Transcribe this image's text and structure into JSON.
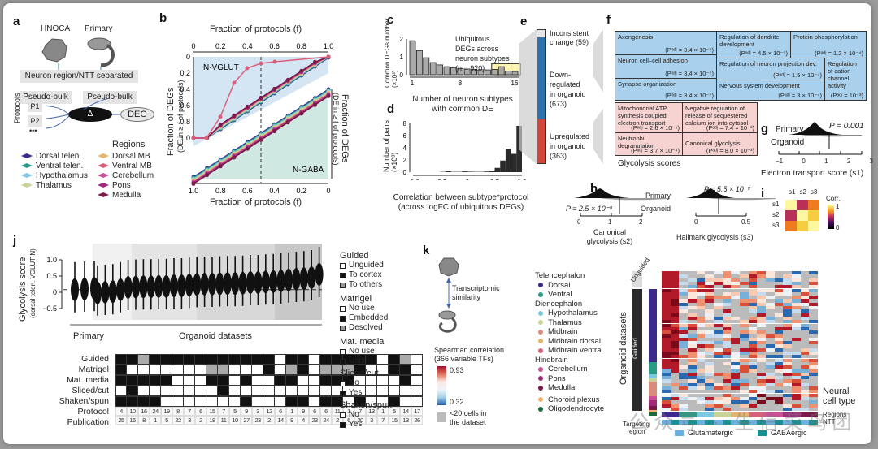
{
  "panels": {
    "a": {
      "label": "a",
      "hnoca": "HNOCA",
      "primary": "Primary",
      "separated": "Neuron region/NTT separated",
      "pseudobulk_left": "Pseudo-bulk",
      "pseudobulk_right": "Pseudo-bulk",
      "protocols_axis": "Protocols",
      "p1": "P1",
      "p2": "P2",
      "ellipsis": "•••",
      "delta": "Δ",
      "deg": "DEG",
      "regions_title": "Regions",
      "regions_left": [
        {
          "label": "Dorsal telen.",
          "color": "#3a2a8c"
        },
        {
          "label": "Ventral telen.",
          "color": "#2a9c86"
        },
        {
          "label": "Hypothalamus",
          "color": "#7cc8e0"
        },
        {
          "label": "Thalamus",
          "color": "#c6d49a"
        }
      ],
      "regions_right": [
        {
          "label": "Dorsal MB",
          "color": "#e3b470"
        },
        {
          "label": "Ventral MB",
          "color": "#d9607a"
        },
        {
          "label": "Cerebellum",
          "color": "#c95095"
        },
        {
          "label": "Pons",
          "color": "#a02a7a"
        },
        {
          "label": "Medulla",
          "color": "#7a1a4a"
        }
      ]
    },
    "b": {
      "label": "b",
      "top_xlabel": "Fraction of protocols (f)",
      "bottom_xlabel": "Fraction of protocols (f)",
      "left_ylabel": "Fraction of DEGs",
      "left_ylabel_sub": "(DE in ≥ f of protocols)",
      "right_ylabel": "Fraction of DEGs",
      "right_ylabel_sub": "(DE in ≥ f of protocols)",
      "top_ticks": [
        "0",
        "0.2",
        "0.4",
        "0.6",
        "0.8",
        "1.0"
      ],
      "bottom_ticks": [
        "1.0",
        "0.8",
        "0.6",
        "0.4",
        "0.2",
        "0"
      ],
      "left_ticks": [
        "0",
        "0.2",
        "0.4",
        "0.6",
        "0.8",
        "1.0"
      ],
      "right_ticks": [
        "1.0",
        "0.8",
        "0.6",
        "0.4",
        "0.2",
        "0"
      ],
      "vglut_label": "N-VGLUT",
      "gaba_label": "N-GABA"
    },
    "c": {
      "label": "c",
      "ylabel": "Common DEGs number (×10³)",
      "xlabel_1": "Number of neuron subtypes",
      "xlabel_2": "with common DE",
      "annotation_1": "Ubiquitous",
      "annotation_2": "DEGs across",
      "annotation_3": "neuron subtypes",
      "annotation_4": "(n = 920)",
      "yticks": [
        "0",
        "1",
        "2"
      ],
      "xticks": [
        "1",
        "8",
        "16"
      ]
    },
    "d": {
      "label": "d",
      "ylabel": "Number of pairs (×10³)",
      "xlabel_1": "Correlation between subtype*protocol",
      "xlabel_2": "(across logFC of ubiquitous  DEGs)",
      "yticks": [
        "0",
        "2",
        "4",
        "6",
        "8"
      ],
      "xticks": [
        "−1.0",
        "−0.5",
        "0",
        "0.5",
        "1.0"
      ]
    },
    "e": {
      "label": "e",
      "segments": [
        {
          "label": "Inconsistent change (59)",
          "count": 59,
          "color": "#e6e6e6"
        },
        {
          "label": "Down-regulated in organoid (673)",
          "count": 673,
          "color": "#2f73ad"
        },
        {
          "label": "Upregulated in organoid (363)",
          "count": 363,
          "color": "#d2473a"
        }
      ],
      "text_incons_1": "Inconsistent",
      "text_incons_2": "change (59)",
      "text_down_1": "Down-",
      "text_down_2": "regulated",
      "text_down_3": "in organoid",
      "text_down_4": "(673)",
      "text_up_1": "Upregulated",
      "text_up_2": "in organoid",
      "text_up_3": "(363)"
    },
    "f": {
      "label": "f",
      "down_terms": [
        {
          "name": "Axongenesis",
          "p": "(Pᵃᵈʲ = 3.4 × 10⁻⁵)"
        },
        {
          "name": "Regulation of dendrite development",
          "p": "(Pᵃᵈʲ = 4.5 × 10⁻⁵)"
        },
        {
          "name": "Protein phosphorylation",
          "p": "(Pᵃᵈʲ = 1.2 × 10⁻⁴)"
        },
        {
          "name": "Neuron cell–cell adhesion",
          "p": "(Pᵃᵈʲ = 3.4 × 10⁻⁵)"
        },
        {
          "name": "Regulation of neuron projection dev.",
          "p": "(Pᵃᵈʲ = 1.5 × 10⁻⁴)"
        },
        {
          "name": "Regulation of cation channel activity",
          "p": "(Pᵃᵈʲ = 10⁻³)"
        },
        {
          "name": "Synapse organization",
          "p": "(Pᵃᵈʲ = 3.4 × 10⁻⁵)"
        },
        {
          "name": "Nervous system development",
          "p": "(Pᵃᵈʲ = 3 × 10⁻⁴)"
        }
      ],
      "up_terms": [
        {
          "name": "Mitochondrial ATP synthesis coupled electron transport",
          "p": "(Pᵃᵈʲ = 2.6 × 10⁻⁵)"
        },
        {
          "name": "Negative regulation of release of sequestered calcium ion into cytosol",
          "p": "(Pᵃᵈʲ = 7.4 × 10⁻³)"
        },
        {
          "name": "Neutrophil degranulation",
          "p": "(Pᵃᵈʲ = 3.7 × 10⁻⁴)"
        },
        {
          "name": "Canonical glycolysis",
          "p": "(Pᵃᵈʲ = 8.0 × 10⁻³)"
        }
      ],
      "glycolysis_scores": "Glycolysis scores"
    },
    "g": {
      "label": "g",
      "primary": "Primary",
      "organoid": "Organoid",
      "p_value": "P = 0.001",
      "xlabel": "Electron transport score (s1)",
      "xticks": [
        "−1",
        "0",
        "1",
        "2",
        "3"
      ]
    },
    "h": {
      "label": "h",
      "primary": "Primary",
      "organoid": "Organoid",
      "p_left": "P = 2.5 × 10⁻⁸",
      "p_right": "P = 5.5 × 10⁻⁷",
      "xlabel_left_1": "Canonical",
      "xlabel_left_2": "glycolysis (s2)",
      "xlabel_right": "Hallmark glycolysis (s3)",
      "xticks_left": [
        "0",
        "1",
        "2"
      ],
      "xticks_right": [
        "0",
        "0.5"
      ]
    },
    "i": {
      "label": "i",
      "cols": [
        "s1",
        "s2",
        "s3"
      ],
      "rows": [
        "s1",
        "s2",
        "s3"
      ],
      "matrix": [
        [
          1.0,
          0.35,
          0.7
        ],
        [
          0.35,
          1.0,
          0.9
        ],
        [
          0.7,
          0.9,
          1.0
        ]
      ],
      "legend_title": "Corr.",
      "legend_max": "1",
      "legend_min": "0"
    },
    "j": {
      "label": "j",
      "ylabel": "Glycolysis score",
      "ylabel_sub": "(dorsal telen. VGLUT-N)",
      "yticks": [
        "1.0",
        "0.5",
        "0",
        "−0.5"
      ],
      "primary_label": "Primary",
      "organoid_label": "Organoid datasets",
      "row_labels": [
        "Guided",
        "Matrigel",
        "Mat. media",
        "Sliced/cut",
        "Shaken/spun",
        "Protocol",
        "Publication"
      ],
      "guided": [
        1,
        1,
        2,
        1,
        1,
        1,
        1,
        1,
        1,
        1,
        1,
        1,
        1,
        1,
        0,
        1,
        1,
        0,
        1,
        1,
        1,
        1,
        1,
        0,
        1,
        2,
        0,
        1,
        2,
        2
      ],
      "matrigel": [
        1,
        0,
        0,
        0,
        0,
        0,
        0,
        0,
        2,
        2,
        0,
        0,
        0,
        1,
        0,
        2,
        1,
        0,
        2,
        2,
        2,
        1,
        0,
        0,
        1,
        1,
        0,
        0,
        0,
        0
      ],
      "mat_media": [
        1,
        1,
        1,
        1,
        1,
        0,
        0,
        0,
        1,
        1,
        0,
        1,
        0,
        0,
        1,
        1,
        0,
        0,
        1,
        1,
        1,
        0,
        0,
        0,
        0,
        1,
        0,
        0,
        0,
        0
      ],
      "sliced": [
        0,
        1,
        0,
        0,
        0,
        0,
        0,
        0,
        0,
        1,
        0,
        0,
        0,
        0,
        0,
        0,
        0,
        0,
        0,
        0,
        0,
        0,
        0,
        0,
        0,
        0,
        0,
        0,
        0,
        0
      ],
      "shaken": [
        1,
        1,
        1,
        1,
        0,
        0,
        0,
        0,
        0,
        0,
        0,
        1,
        0,
        0,
        0,
        1,
        1,
        0,
        1,
        1,
        0,
        1,
        0,
        0,
        1,
        0,
        0,
        1,
        1,
        1
      ],
      "protocol": [
        "4",
        "10",
        "16",
        "24",
        "19",
        "8",
        "7",
        "6",
        "15",
        "7",
        "5",
        "9",
        "3",
        "12",
        "6",
        "1",
        "9",
        "6",
        "6",
        "11",
        "1",
        "7",
        "13",
        "1",
        "5",
        "14",
        "17",
        "",
        "",
        ""
      ],
      "publication": [
        "25",
        "16",
        "8",
        "1",
        "5",
        "22",
        "3",
        "2",
        "18",
        "11",
        "10",
        "27",
        "23",
        "2",
        "14",
        "9",
        "4",
        "23",
        "24",
        "2",
        "6",
        "20",
        "3",
        "7",
        "15",
        "13",
        "26",
        "",
        "",
        ""
      ],
      "primary_medians": [
        0.08,
        0.1,
        0.12
      ],
      "organoid_medians": [
        -0.02,
        0.0,
        0.02,
        0.08,
        0.15,
        0.16,
        0.17,
        0.17,
        0.18,
        0.18,
        0.2,
        0.2,
        0.22,
        0.24,
        0.25,
        0.25,
        0.26,
        0.27,
        0.27,
        0.28,
        0.3,
        0.3,
        0.32,
        0.33,
        0.35,
        0.38,
        0.4,
        0.42,
        0.45,
        0.55
      ],
      "legend": {
        "guided_title": "Guided",
        "guided_items": [
          "Unguided",
          "To cortex",
          "To others"
        ],
        "matrigel_title": "Matrigel",
        "matrigel_items": [
          "No use",
          "Embedded",
          "Desolved"
        ],
        "matmedia_title": "Mat. media",
        "matmedia_items": [
          "No use",
          "Used"
        ],
        "sliced_title": "Sliced/cut",
        "sliced_items": [
          "No",
          "Yes"
        ],
        "shaken_title": "Shaken/spun",
        "shaken_items": [
          "No",
          "Yes"
        ]
      }
    },
    "k": {
      "label": "k",
      "similarity": "Transcriptomic similarity",
      "similarity_1": "Transcriptomic",
      "similarity_2": "similarity",
      "scale_title_1": "Spearman correlation",
      "scale_title_2": "(366 variable TFs)",
      "scale_max": "0.93",
      "scale_min": "0.32",
      "na_1": "<20 cells in",
      "na_2": "the dataset",
      "groups": [
        {
          "title": "Telencephalon",
          "items": [
            {
              "label": "Dorsal",
              "color": "#3a2a8c"
            },
            {
              "label": "Ventral",
              "color": "#2a9c86"
            }
          ]
        },
        {
          "title": "Diencephalon",
          "items": [
            {
              "label": "Hypothalamus",
              "color": "#7cc8e0"
            },
            {
              "label": "Thalamus",
              "color": "#c6d49a"
            },
            {
              "label": "Midbrain",
              "color": "#d98c7a"
            },
            {
              "label": "Midbrain dorsal",
              "color": "#e3b470"
            },
            {
              "label": "Midbrain ventral",
              "color": "#d9607a"
            }
          ]
        },
        {
          "title": "Hindbrain",
          "items": [
            {
              "label": "Cerebellum",
              "color": "#c95095"
            },
            {
              "label": "Pons",
              "color": "#a02a7a"
            },
            {
              "label": "Medulla",
              "color": "#7a1a4a"
            }
          ]
        },
        {
          "title": "",
          "items": [
            {
              "label": "Choroid plexus",
              "color": "#f5b070"
            },
            {
              "label": "Oligodendrocyte",
              "color": "#1a6a3a"
            }
          ]
        }
      ],
      "unguided": "Unguided",
      "guided": "Guided",
      "organoid_datasets": "Organoid datasets",
      "targeting_1": "Targeting",
      "targeting_2": "region",
      "neural_1": "Neural",
      "neural_2": "cell type",
      "regions": "Regions",
      "ntt": "NTT",
      "glut": "Glutamatergic",
      "gaba": "GABAergic",
      "glut_color": "#6cb0e0",
      "gaba_color": "#1a9090"
    },
    "watermark": "公众号 · 生信菜鸟团"
  }
}
